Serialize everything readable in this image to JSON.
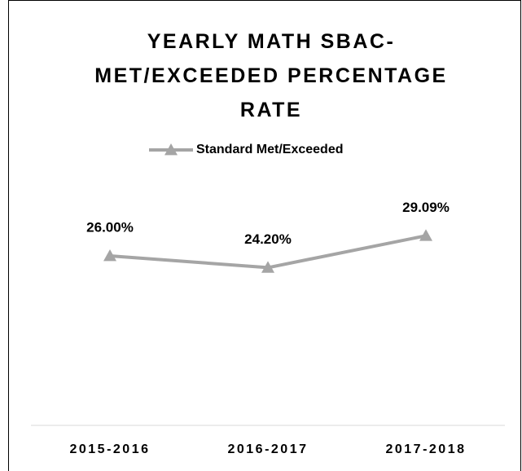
{
  "chart_data": {
    "type": "line",
    "title": "YEARLY MATH SBAC-MET/EXCEEDED PERCENTAGE RATE",
    "categories": [
      "2015-2016",
      "2016-2017",
      "2017-2018"
    ],
    "series": [
      {
        "name": "Standard Met/Exceeded",
        "color": "#a5a5a5",
        "values": [
          26,
          24.2,
          29.09
        ],
        "value_labels": [
          "26.00%",
          "24.20%",
          "29.09%"
        ]
      }
    ],
    "ylim": [
      0,
      35
    ],
    "grid": false,
    "legend": "top"
  }
}
